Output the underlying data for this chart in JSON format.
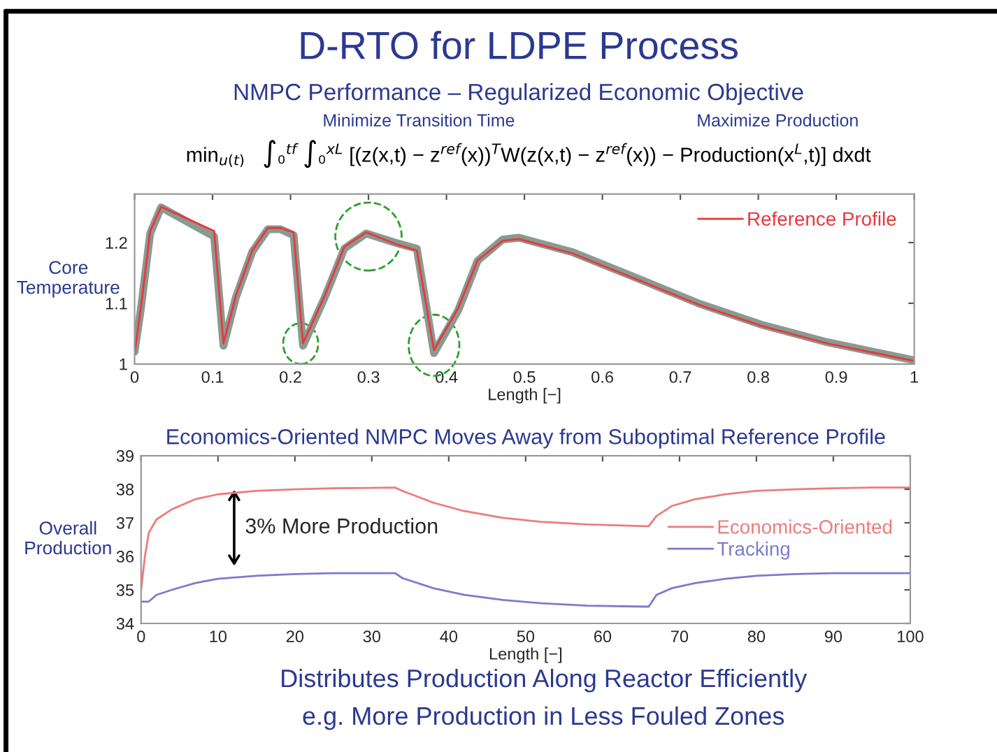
{
  "chart_data": [
    {
      "type": "line",
      "title": "D-RTO for LDPE Process",
      "subtitle": "NMPC Performance – Regularized Economic Objective",
      "xlabel": "Length [−]",
      "ylabel": "Core\nTemperature",
      "annotations": [
        "Minimize Transition Time",
        "Maximize Production",
        "min$_{u(t)}$   ∫₀$^{tf}$ ∫₀$^{xL}$ [(z(x,t) − z$^{ref}$(x))$^{T}$W(z(x,t) − z$^{ref}$(x)) − Production(x$^{L}$,t)] dxdt"
      ],
      "xlim": [
        0,
        1
      ],
      "xticks": [
        0,
        0.1,
        0.2,
        0.3,
        0.4,
        0.5,
        0.6,
        0.7,
        0.8,
        0.9,
        1
      ],
      "ylim": [
        1,
        1.28
      ],
      "yticks": [
        1,
        1.1,
        1.2
      ],
      "grid": false,
      "legend": "top right",
      "x": [
        0,
        0.008,
        0.02,
        0.034,
        0.102,
        0.114,
        0.13,
        0.151,
        0.171,
        0.187,
        0.204,
        0.216,
        0.244,
        0.269,
        0.297,
        0.334,
        0.362,
        0.384,
        0.415,
        0.44,
        0.472,
        0.493,
        0.562,
        0.643,
        0.725,
        0.806,
        0.888,
        1
      ],
      "series": [
        {
          "color": "#8a9a90",
          "values": [
            1.02,
            1.09,
            1.215,
            1.258,
            1.21,
            1.03,
            1.11,
            1.185,
            1.222,
            1.222,
            1.212,
            1.03,
            1.11,
            1.19,
            1.215,
            1.2,
            1.19,
            1.018,
            1.088,
            1.17,
            1.205,
            1.208,
            1.184,
            1.142,
            1.099,
            1.064,
            1.036,
            1.006
          ]
        },
        {
          "name": "Reference Profile",
          "color": "#e8383d",
          "values": [
            1.018,
            1.092,
            1.219,
            1.259,
            1.219,
            1.034,
            1.113,
            1.187,
            1.224,
            1.224,
            1.217,
            1.034,
            1.113,
            1.193,
            1.217,
            1.198,
            1.187,
            1.023,
            1.092,
            1.171,
            1.203,
            1.206,
            1.182,
            1.14,
            1.097,
            1.062,
            1.034,
            1.005
          ]
        }
      ]
    },
    {
      "type": "line",
      "title": "Economics-Oriented NMPC Moves Away from Suboptimal Reference Profile",
      "xlabel": "Length [−]",
      "ylabel": "Overall\nProduction",
      "annotations": [
        "3% More Production",
        "Distributes Production Along Reactor Efficiently",
        "e.g. More Production in Less Fouled Zones"
      ],
      "xlim": [
        0,
        100
      ],
      "xticks": [
        0,
        10,
        20,
        30,
        40,
        50,
        60,
        70,
        80,
        90,
        100
      ],
      "ylim": [
        34,
        39
      ],
      "yticks": [
        34,
        35,
        36,
        37,
        38,
        39
      ],
      "grid": false,
      "legend": "right",
      "series": [
        {
          "name": "Economics-Oriented",
          "color": "#ee7b7b",
          "x": [
            0,
            0.5,
            1,
            2,
            4,
            7,
            10,
            15,
            20,
            25,
            33,
            34,
            38,
            42,
            47,
            52,
            58,
            65.5,
            66,
            67,
            69,
            72,
            76,
            80,
            85,
            90,
            95,
            100
          ],
          "values": [
            35.0,
            36.0,
            36.7,
            37.1,
            37.4,
            37.7,
            37.85,
            37.95,
            38.0,
            38.03,
            38.05,
            37.95,
            37.6,
            37.35,
            37.15,
            37.03,
            36.95,
            36.9,
            36.9,
            37.2,
            37.5,
            37.7,
            37.85,
            37.95,
            38.0,
            38.03,
            38.05,
            38.05
          ]
        },
        {
          "name": "Tracking",
          "color": "#7b7bd0",
          "x": [
            0,
            1,
            2,
            4,
            7,
            10,
            15,
            20,
            25,
            33,
            34,
            38,
            42,
            47,
            52,
            58,
            65.5,
            66,
            67,
            69,
            72,
            76,
            80,
            85,
            90,
            100
          ],
          "values": [
            34.65,
            34.65,
            34.85,
            35.0,
            35.2,
            35.33,
            35.42,
            35.47,
            35.5,
            35.5,
            35.35,
            35.05,
            34.85,
            34.7,
            34.6,
            34.53,
            34.5,
            34.5,
            34.85,
            35.05,
            35.2,
            35.33,
            35.42,
            35.47,
            35.5,
            35.5
          ]
        }
      ]
    }
  ]
}
